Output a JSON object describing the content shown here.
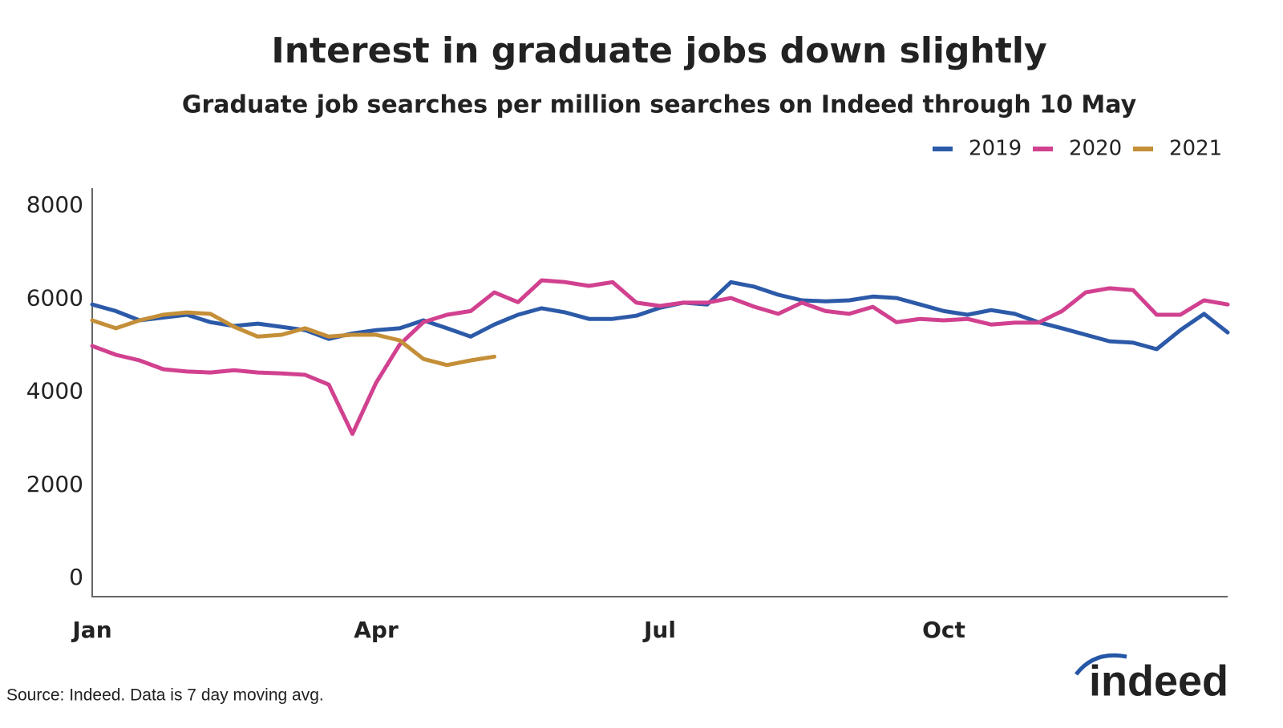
{
  "chart_data": {
    "type": "line",
    "title": "Interest in graduate jobs down slightly",
    "subtitle": "Graduate job searches per million searches on Indeed through 10 May",
    "source": "Source: Indeed. Data is 7 day moving avg.",
    "logo": "indeed",
    "legend": "top-right",
    "grid": false,
    "categories": [
      "Jan",
      null,
      null,
      null,
      null,
      null,
      null,
      null,
      null,
      null,
      null,
      null,
      "Apr",
      null,
      null,
      null,
      null,
      null,
      null,
      null,
      null,
      null,
      null,
      null,
      "Jul",
      null,
      null,
      null,
      null,
      null,
      null,
      null,
      null,
      null,
      null,
      null,
      "Oct",
      null,
      null,
      null,
      null,
      null,
      null,
      null,
      null,
      null,
      null,
      null,
      null
    ],
    "ylim": [
      0,
      8000
    ],
    "yticks": [
      0,
      2000,
      4000,
      6000,
      8000
    ],
    "series": [
      {
        "name": "2019",
        "color": "#2c5aa8",
        "values": [
          5880,
          5740,
          5540,
          5600,
          5660,
          5500,
          5420,
          5470,
          5400,
          5330,
          5140,
          5260,
          5330,
          5370,
          5540,
          5370,
          5190,
          5450,
          5660,
          5800,
          5710,
          5570,
          5570,
          5640,
          5810,
          5920,
          5880,
          6360,
          6260,
          6090,
          5970,
          5950,
          5970,
          6050,
          6020,
          5880,
          5740,
          5660,
          5760,
          5680,
          5500,
          5370,
          5230,
          5090,
          5060,
          4920,
          5330,
          5680,
          5280
        ]
      },
      {
        "name": "2020",
        "color": "#d1418f",
        "values": [
          4990,
          4800,
          4680,
          4490,
          4440,
          4420,
          4470,
          4420,
          4400,
          4370,
          4160,
          3100,
          4200,
          5020,
          5500,
          5660,
          5740,
          6140,
          5930,
          6400,
          6360,
          6280,
          6360,
          5920,
          5850,
          5920,
          5920,
          6020,
          5830,
          5680,
          5920,
          5740,
          5680,
          5830,
          5500,
          5570,
          5540,
          5570,
          5450,
          5490,
          5490,
          5740,
          6140,
          6230,
          6190,
          5660,
          5660,
          5970,
          5880
        ]
      },
      {
        "name": "2021",
        "color": "#c48f38",
        "values": [
          5540,
          5370,
          5540,
          5660,
          5710,
          5680,
          5400,
          5190,
          5230,
          5370,
          5190,
          5230,
          5230,
          5110,
          4710,
          4580,
          4680,
          4760,
          null,
          null,
          null,
          null,
          null,
          null,
          null,
          null,
          null,
          null,
          null,
          null,
          null,
          null,
          null,
          null,
          null,
          null,
          null,
          null,
          null,
          null,
          null,
          null,
          null,
          null,
          null,
          null,
          null,
          null,
          null
        ]
      }
    ]
  }
}
